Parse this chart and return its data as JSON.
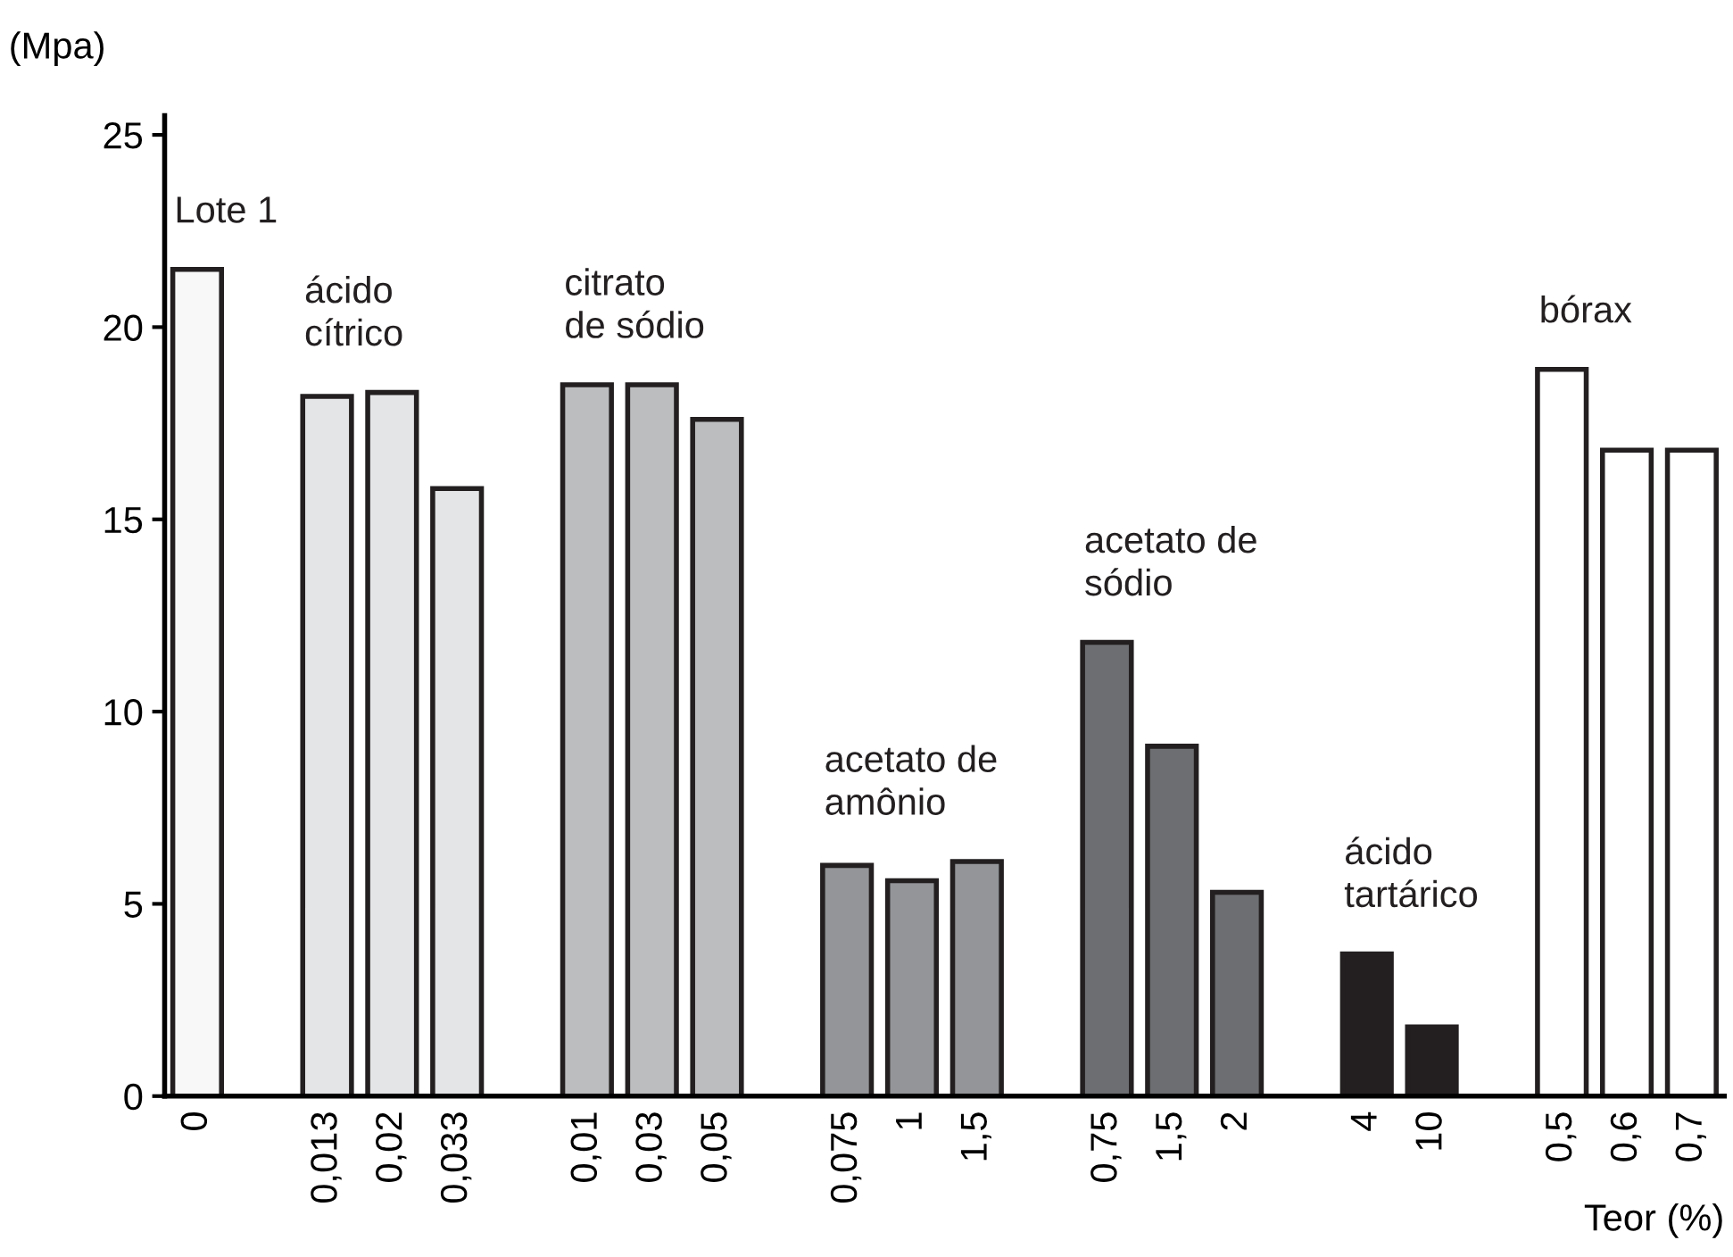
{
  "chart_data": {
    "type": "bar",
    "xlabel": "Teor (%)",
    "ylabel": "(Mpa)",
    "categories": [
      "0",
      null,
      "0,013",
      "0,02",
      "0,033",
      null,
      "0,01",
      "0,03",
      "0,05",
      null,
      "0,075",
      "1",
      "1,5",
      null,
      "0,75",
      "1,5",
      "2",
      null,
      "4",
      "10",
      null,
      "0,5",
      "0,6",
      "0,7"
    ],
    "series": [
      {
        "name": "Lote 1",
        "color": "#f8f8f8",
        "values": [
          21.5,
          null,
          null,
          null,
          null,
          null,
          null,
          null,
          null,
          null,
          null,
          null,
          null,
          null,
          null,
          null,
          null,
          null,
          null,
          null,
          null,
          null,
          null,
          null
        ]
      },
      {
        "name": "ácido\ncítrico",
        "color": "#e4e5e7",
        "values": [
          null,
          null,
          18.2,
          18.3,
          15.8,
          null,
          null,
          null,
          null,
          null,
          null,
          null,
          null,
          null,
          null,
          null,
          null,
          null,
          null,
          null,
          null,
          null,
          null,
          null
        ]
      },
      {
        "name": "citrato\nde sódio",
        "color": "#bcbdbf",
        "values": [
          null,
          null,
          null,
          null,
          null,
          null,
          18.5,
          18.5,
          17.6,
          null,
          null,
          null,
          null,
          null,
          null,
          null,
          null,
          null,
          null,
          null,
          null,
          null,
          null,
          null
        ]
      },
      {
        "name": "acetato de\namônio",
        "color": "#939598",
        "values": [
          null,
          null,
          null,
          null,
          null,
          null,
          null,
          null,
          null,
          null,
          6.0,
          5.6,
          6.1,
          null,
          null,
          null,
          null,
          null,
          null,
          null,
          null,
          null,
          null,
          null
        ]
      },
      {
        "name": "acetato de\nsódio",
        "color": "#6d6e71",
        "values": [
          null,
          null,
          null,
          null,
          null,
          null,
          null,
          null,
          null,
          null,
          null,
          null,
          null,
          null,
          11.8,
          9.1,
          5.3,
          null,
          null,
          null,
          null,
          null,
          null,
          null
        ]
      },
      {
        "name": "ácido\ntartárico",
        "color": "#231f20",
        "values": [
          null,
          null,
          null,
          null,
          null,
          null,
          null,
          null,
          null,
          null,
          null,
          null,
          null,
          null,
          null,
          null,
          null,
          null,
          3.7,
          1.8,
          null,
          null,
          null,
          null
        ]
      },
      {
        "name": "bórax",
        "color": "#ffffff",
        "values": [
          null,
          null,
          null,
          null,
          null,
          null,
          null,
          null,
          null,
          null,
          null,
          null,
          null,
          null,
          null,
          null,
          null,
          null,
          null,
          null,
          null,
          18.9,
          16.8,
          16.8
        ]
      }
    ],
    "ylim": [
      0,
      25.5
    ],
    "yticks": [
      0,
      5,
      10,
      15,
      20,
      25
    ],
    "grid": false,
    "legend": false
  }
}
